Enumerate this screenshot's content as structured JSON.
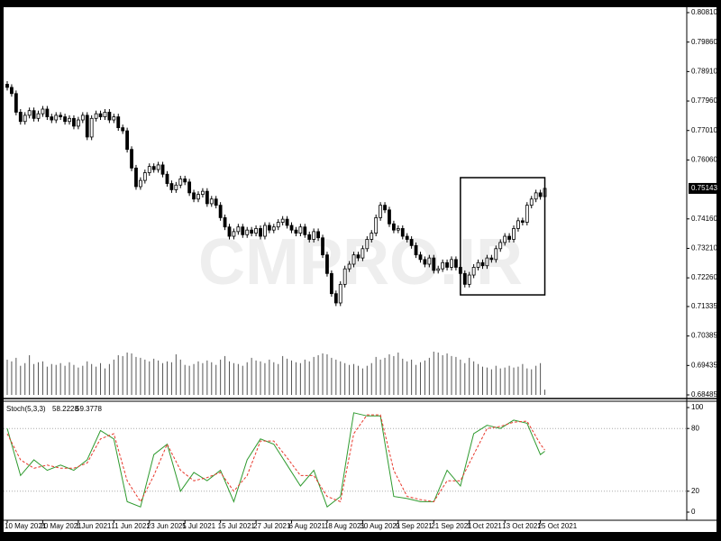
{
  "chart_data": [
    {
      "type": "candlestick",
      "watermark": "CMPRO.IR",
      "ylim": [
        0.68485,
        0.8081
      ],
      "yticks": [
        {
          "value": 0.8081,
          "label": "0.80810"
        },
        {
          "value": 0.7986,
          "label": "0.79860"
        },
        {
          "value": 0.7891,
          "label": "0.78910"
        },
        {
          "value": 0.7796,
          "label": "0.77960"
        },
        {
          "value": 0.7701,
          "label": "0.77010"
        },
        {
          "value": 0.7606,
          "label": "0.76060"
        },
        {
          "value": 0.7416,
          "label": "0.74160"
        },
        {
          "value": 0.7321,
          "label": "0.73210"
        },
        {
          "value": 0.7226,
          "label": "0.72260"
        },
        {
          "value": 0.71335,
          "label": "0.71335"
        },
        {
          "value": 0.70385,
          "label": "0.70385"
        },
        {
          "value": 0.69435,
          "label": "0.69435"
        },
        {
          "value": 0.68485,
          "label": "0.68485"
        }
      ],
      "current_price": {
        "value": 0.75143,
        "label": "0.75143"
      },
      "xticks": [
        {
          "value": 0,
          "label": "10 May 2021"
        },
        {
          "value": 8,
          "label": "20 May 2021"
        },
        {
          "value": 16,
          "label": "1 Jun 2021"
        },
        {
          "value": 24,
          "label": "11 Jun 2021"
        },
        {
          "value": 32,
          "label": "23 Jun 2021"
        },
        {
          "value": 40,
          "label": "5 Jul 2021"
        },
        {
          "value": 48,
          "label": "15 Jul 2021"
        },
        {
          "value": 56,
          "label": "27 Jul 2021"
        },
        {
          "value": 64,
          "label": "6 Aug 2021"
        },
        {
          "value": 72,
          "label": "18 Aug 2021"
        },
        {
          "value": 80,
          "label": "30 Aug 2021"
        },
        {
          "value": 88,
          "label": "9 Sep 2021"
        },
        {
          "value": 96,
          "label": "21 Sep 2021"
        },
        {
          "value": 104,
          "label": "1 Oct 2021"
        },
        {
          "value": 112,
          "label": "13 Oct 2021"
        },
        {
          "value": 120,
          "label": "25 Oct 2021"
        }
      ],
      "rectangle": {
        "x": [
          102,
          121
        ],
        "y": [
          0.7171,
          0.7549
        ]
      },
      "open": [
        0.785,
        0.784,
        0.782,
        0.776,
        0.773,
        0.775,
        0.7765,
        0.774,
        0.7755,
        0.777,
        0.7745,
        0.7735,
        0.775,
        0.7745,
        0.773,
        0.774,
        0.7715,
        0.7735,
        0.775,
        0.768,
        0.774,
        0.7755,
        0.7745,
        0.776,
        0.7735,
        0.7745,
        0.771,
        0.77,
        0.764,
        0.758,
        0.752,
        0.754,
        0.7565,
        0.7585,
        0.7575,
        0.759,
        0.756,
        0.753,
        0.751,
        0.7525,
        0.7545,
        0.7535,
        0.75,
        0.748,
        0.7495,
        0.7505,
        0.7465,
        0.748,
        0.746,
        0.742,
        0.739,
        0.736,
        0.7375,
        0.739,
        0.7365,
        0.738,
        0.737,
        0.7385,
        0.736,
        0.7395,
        0.738,
        0.739,
        0.7405,
        0.7415,
        0.7395,
        0.738,
        0.737,
        0.739,
        0.7365,
        0.735,
        0.7375,
        0.7355,
        0.73,
        0.724,
        0.7175,
        0.7145,
        0.7205,
        0.7255,
        0.727,
        0.73,
        0.729,
        0.732,
        0.735,
        0.737,
        0.742,
        0.746,
        0.7445,
        0.74,
        0.738,
        0.7385,
        0.736,
        0.735,
        0.733,
        0.73,
        0.7285,
        0.727,
        0.729,
        0.725,
        0.7255,
        0.7275,
        0.726,
        0.7285,
        0.726,
        0.724,
        0.7205,
        0.7235,
        0.726,
        0.7275,
        0.7265,
        0.729,
        0.7285,
        0.732,
        0.734,
        0.736,
        0.735,
        0.7385,
        0.741,
        0.7405,
        0.746,
        0.748,
        0.75,
        0.7488
      ],
      "high": [
        0.786,
        0.785,
        0.783,
        0.777,
        0.776,
        0.7775,
        0.7775,
        0.7765,
        0.778,
        0.778,
        0.7755,
        0.776,
        0.776,
        0.7755,
        0.775,
        0.775,
        0.7745,
        0.776,
        0.776,
        0.775,
        0.7765,
        0.7765,
        0.777,
        0.777,
        0.7755,
        0.7755,
        0.772,
        0.771,
        0.765,
        0.759,
        0.755,
        0.7575,
        0.7595,
        0.7595,
        0.76,
        0.76,
        0.757,
        0.754,
        0.7535,
        0.7555,
        0.7555,
        0.7545,
        0.751,
        0.7505,
        0.7515,
        0.7515,
        0.749,
        0.749,
        0.747,
        0.743,
        0.74,
        0.7385,
        0.74,
        0.74,
        0.739,
        0.739,
        0.7395,
        0.7395,
        0.7405,
        0.7405,
        0.74,
        0.7415,
        0.7425,
        0.7425,
        0.7405,
        0.739,
        0.74,
        0.74,
        0.7375,
        0.7385,
        0.7385,
        0.7365,
        0.731,
        0.725,
        0.7185,
        0.7215,
        0.7265,
        0.728,
        0.731,
        0.731,
        0.733,
        0.736,
        0.738,
        0.743,
        0.747,
        0.747,
        0.7455,
        0.741,
        0.7395,
        0.7395,
        0.737,
        0.736,
        0.734,
        0.731,
        0.7295,
        0.73,
        0.73,
        0.7265,
        0.7285,
        0.7285,
        0.7295,
        0.7295,
        0.727,
        0.725,
        0.7245,
        0.727,
        0.7285,
        0.7285,
        0.73,
        0.73,
        0.733,
        0.735,
        0.737,
        0.737,
        0.7395,
        0.742,
        0.742,
        0.747,
        0.749,
        0.751,
        0.751,
        0.7524
      ],
      "low": [
        0.783,
        0.781,
        0.775,
        0.772,
        0.772,
        0.774,
        0.773,
        0.773,
        0.7745,
        0.7735,
        0.7725,
        0.7725,
        0.7735,
        0.772,
        0.772,
        0.7705,
        0.7705,
        0.7725,
        0.767,
        0.767,
        0.773,
        0.7735,
        0.7735,
        0.7725,
        0.7725,
        0.77,
        0.769,
        0.763,
        0.757,
        0.751,
        0.751,
        0.753,
        0.7555,
        0.7565,
        0.7565,
        0.755,
        0.752,
        0.75,
        0.75,
        0.7515,
        0.7525,
        0.749,
        0.747,
        0.747,
        0.7485,
        0.7455,
        0.7455,
        0.745,
        0.741,
        0.738,
        0.735,
        0.735,
        0.7365,
        0.7355,
        0.7355,
        0.736,
        0.736,
        0.735,
        0.735,
        0.737,
        0.737,
        0.738,
        0.7395,
        0.7385,
        0.737,
        0.736,
        0.736,
        0.7355,
        0.734,
        0.734,
        0.7345,
        0.729,
        0.723,
        0.7165,
        0.7135,
        0.7135,
        0.7195,
        0.7245,
        0.726,
        0.728,
        0.728,
        0.731,
        0.734,
        0.736,
        0.741,
        0.7435,
        0.739,
        0.737,
        0.737,
        0.735,
        0.734,
        0.732,
        0.729,
        0.7275,
        0.726,
        0.726,
        0.724,
        0.724,
        0.7245,
        0.725,
        0.725,
        0.725,
        0.723,
        0.7195,
        0.7195,
        0.7225,
        0.725,
        0.7255,
        0.7255,
        0.7275,
        0.7275,
        0.731,
        0.733,
        0.734,
        0.734,
        0.7375,
        0.7395,
        0.7395,
        0.745,
        0.747,
        0.7478,
        0.7478
      ],
      "close": [
        0.784,
        0.782,
        0.776,
        0.773,
        0.775,
        0.7765,
        0.774,
        0.7755,
        0.777,
        0.7745,
        0.7735,
        0.775,
        0.7745,
        0.773,
        0.774,
        0.7715,
        0.7735,
        0.775,
        0.768,
        0.774,
        0.7755,
        0.7745,
        0.776,
        0.7735,
        0.7745,
        0.771,
        0.77,
        0.764,
        0.758,
        0.752,
        0.754,
        0.7565,
        0.7585,
        0.7575,
        0.759,
        0.756,
        0.753,
        0.751,
        0.7525,
        0.7545,
        0.7535,
        0.75,
        0.748,
        0.7495,
        0.7505,
        0.7465,
        0.748,
        0.746,
        0.742,
        0.739,
        0.736,
        0.7375,
        0.739,
        0.7365,
        0.738,
        0.737,
        0.7385,
        0.736,
        0.7395,
        0.738,
        0.739,
        0.7405,
        0.7415,
        0.7395,
        0.738,
        0.737,
        0.739,
        0.7365,
        0.735,
        0.7375,
        0.7355,
        0.73,
        0.724,
        0.7175,
        0.7145,
        0.7205,
        0.7255,
        0.727,
        0.73,
        0.729,
        0.732,
        0.735,
        0.737,
        0.742,
        0.746,
        0.7445,
        0.74,
        0.738,
        0.7385,
        0.736,
        0.735,
        0.733,
        0.73,
        0.7285,
        0.727,
        0.729,
        0.725,
        0.7255,
        0.7275,
        0.726,
        0.7285,
        0.726,
        0.724,
        0.7205,
        0.7235,
        0.726,
        0.7275,
        0.7265,
        0.729,
        0.7285,
        0.732,
        0.734,
        0.736,
        0.735,
        0.7385,
        0.741,
        0.7405,
        0.746,
        0.748,
        0.75,
        0.7488,
        0.75143
      ],
      "volume": [
        40,
        38,
        42,
        33,
        36,
        45,
        35,
        37,
        38,
        32,
        35,
        34,
        36,
        33,
        37,
        34,
        31,
        33,
        38,
        35,
        32,
        36,
        30,
        35,
        40,
        45,
        44,
        48,
        47,
        43,
        42,
        40,
        38,
        41,
        39,
        36,
        38,
        37,
        46,
        40,
        34,
        33,
        35,
        38,
        36,
        39,
        37,
        34,
        40,
        44,
        38,
        36,
        35,
        33,
        37,
        42,
        39,
        38,
        36,
        40,
        37,
        35,
        44,
        41,
        39,
        37,
        36,
        40,
        38,
        43,
        45,
        47,
        46,
        42,
        40,
        38,
        36,
        34,
        35,
        33,
        30,
        33,
        36,
        43,
        40,
        42,
        46,
        44,
        48,
        41,
        38,
        40,
        34,
        37,
        39,
        42,
        49,
        48,
        45,
        47,
        44,
        43,
        40,
        36,
        42,
        38,
        35,
        32,
        31,
        29,
        33,
        30,
        31,
        33,
        31,
        32,
        35,
        30,
        29,
        33,
        36,
        6
      ]
    },
    {
      "type": "line",
      "title": "Stoch(5,3,3)",
      "ylim": [
        0,
        100
      ],
      "yticks": [
        0,
        20,
        80,
        100
      ],
      "levels": [
        20,
        80
      ],
      "x": [
        0,
        3,
        6,
        9,
        12,
        15,
        18,
        21,
        24,
        27,
        30,
        33,
        36,
        39,
        42,
        45,
        48,
        51,
        54,
        57,
        60,
        63,
        66,
        69,
        72,
        75,
        78,
        81,
        84,
        87,
        90,
        93,
        96,
        99,
        102,
        105,
        108,
        111,
        114,
        117,
        120,
        121
      ],
      "series": [
        {
          "color": "#2e9a2e",
          "values": [
            80,
            35,
            50,
            40,
            45,
            40,
            50,
            78,
            70,
            10,
            5,
            55,
            65,
            20,
            38,
            30,
            40,
            10,
            50,
            70,
            65,
            45,
            25,
            40,
            5,
            15,
            95,
            92,
            92,
            15,
            13,
            10,
            10,
            40,
            25,
            75,
            83,
            80,
            88,
            85,
            55,
            58.2228
          ]
        },
        {
          "color": "#e8372a",
          "values": [
            75,
            50,
            42,
            45,
            42,
            42,
            47,
            70,
            75,
            30,
            10,
            35,
            65,
            40,
            30,
            33,
            38,
            20,
            35,
            68,
            68,
            52,
            35,
            35,
            15,
            10,
            75,
            93,
            93,
            40,
            15,
            12,
            10,
            30,
            30,
            55,
            80,
            82,
            86,
            87,
            65,
            59.3778
          ]
        }
      ]
    }
  ]
}
